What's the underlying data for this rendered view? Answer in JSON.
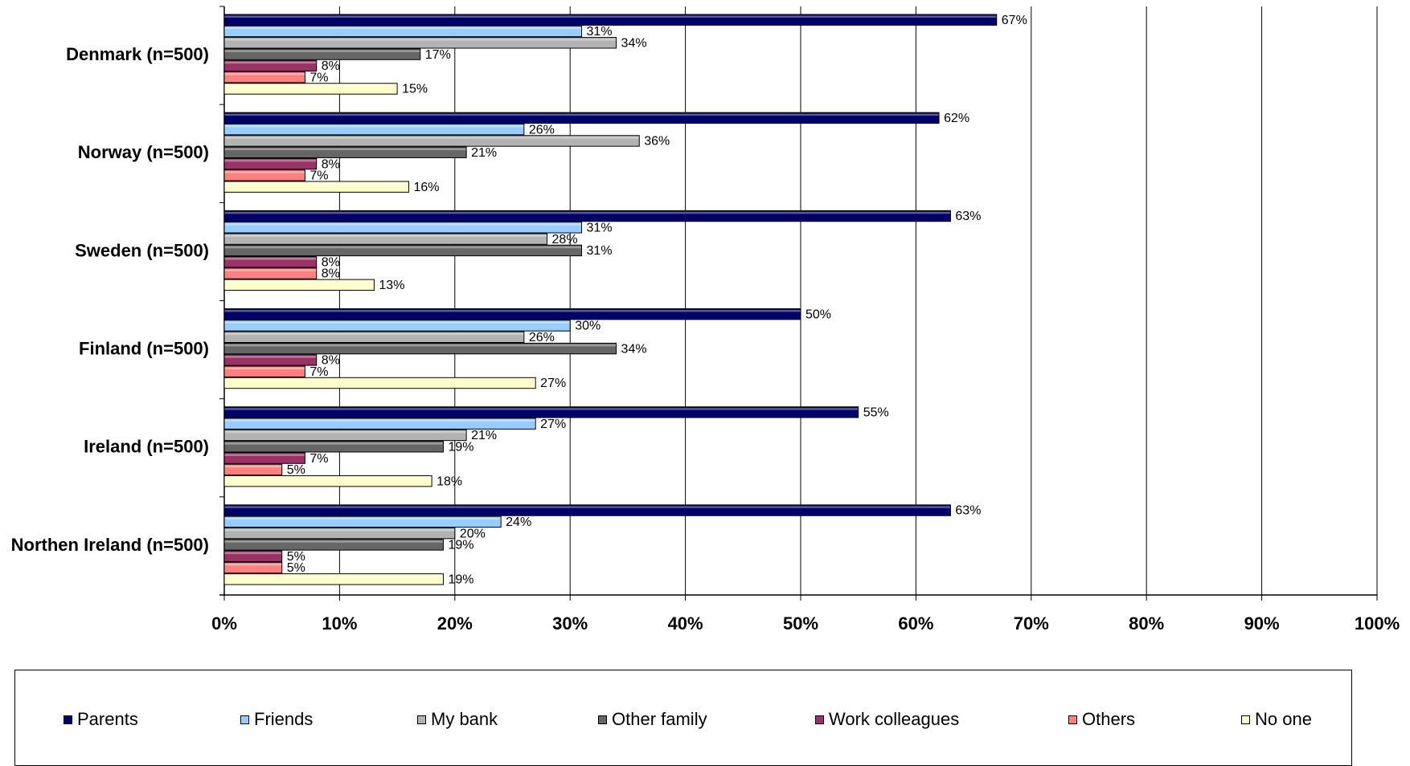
{
  "chart_data": {
    "type": "bar",
    "orientation": "horizontal",
    "categories": [
      "Denmark (n=500)",
      "Norway (n=500)",
      "Sweden (n=500)",
      "Finland (n=500)",
      "Ireland (n=500)",
      "Northen Ireland (n=500)"
    ],
    "series": [
      {
        "name": "Parents",
        "color": "#000066",
        "values": [
          67,
          62,
          63,
          50,
          55,
          63
        ]
      },
      {
        "name": "Friends",
        "color": "#99ccff",
        "values": [
          31,
          26,
          31,
          30,
          27,
          24
        ]
      },
      {
        "name": "My bank",
        "color": "#b3b3b3",
        "values": [
          34,
          36,
          28,
          26,
          21,
          20
        ]
      },
      {
        "name": "Other family",
        "color": "#666666",
        "values": [
          17,
          21,
          31,
          34,
          19,
          19
        ]
      },
      {
        "name": "Work colleagues",
        "color": "#993366",
        "values": [
          8,
          8,
          8,
          8,
          7,
          5
        ]
      },
      {
        "name": "Others",
        "color": "#ff8080",
        "values": [
          7,
          7,
          8,
          7,
          5,
          5
        ]
      },
      {
        "name": "No one",
        "color": "#ffffcc",
        "values": [
          15,
          16,
          13,
          27,
          18,
          19
        ]
      }
    ],
    "data_labels": [
      [
        "67%",
        "31%",
        "34%",
        "17%",
        "8%",
        "7%",
        "15%"
      ],
      [
        "62%",
        "26%",
        "36%",
        "21%",
        "8%",
        "7%",
        "16%"
      ],
      [
        "63%",
        "31%",
        "28%",
        "31%",
        "8%",
        "8%",
        "13%"
      ],
      [
        "50%",
        "30%",
        "26%",
        "34%",
        "8%",
        "7%",
        "27%"
      ],
      [
        "55%",
        "27%",
        "21%",
        "19%",
        "7%",
        "5%",
        "18%"
      ],
      [
        "63%",
        "24%",
        "20%",
        "19%",
        "5%",
        "5%",
        "19%"
      ]
    ],
    "x_ticks": [
      "0%",
      "10%",
      "20%",
      "30%",
      "40%",
      "50%",
      "60%",
      "70%",
      "80%",
      "90%",
      "100%"
    ],
    "xlim": [
      0,
      100
    ],
    "grid": true,
    "legend_position": "bottom",
    "title": "",
    "xlabel": "",
    "ylabel": ""
  }
}
